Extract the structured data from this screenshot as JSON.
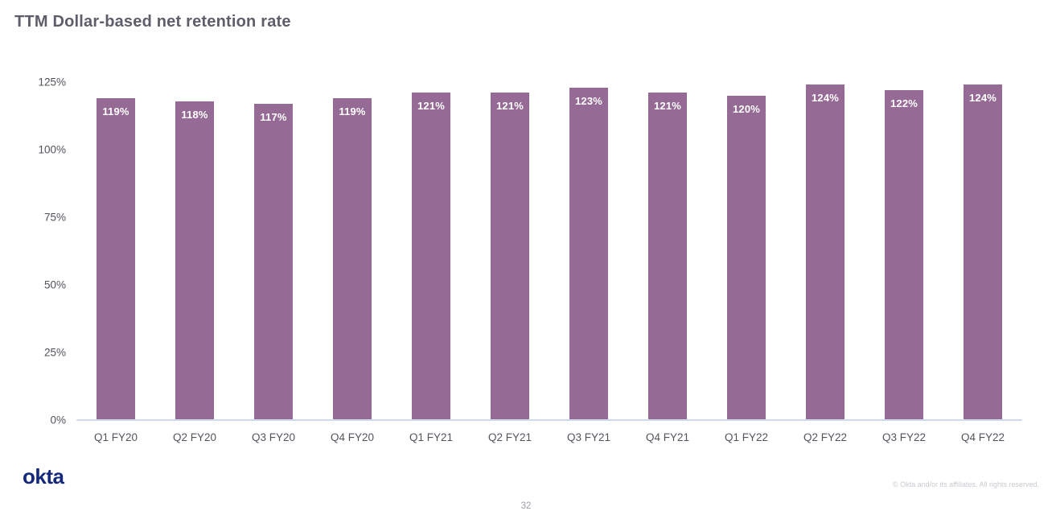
{
  "page": {
    "title": "TTM Dollar-based net retention rate",
    "footer": {
      "logo_text": "okta",
      "copyright": "© Okta and/or its affiliates. All rights reserved.",
      "page_number": "32"
    }
  },
  "chart_data": {
    "type": "bar",
    "title": "TTM Dollar-based net retention rate",
    "categories": [
      "Q1 FY20",
      "Q2 FY20",
      "Q3 FY20",
      "Q4 FY20",
      "Q1 FY21",
      "Q2 FY21",
      "Q3 FY21",
      "Q4 FY21",
      "Q1 FY22",
      "Q2 FY22",
      "Q3 FY22",
      "Q4 FY22"
    ],
    "values": [
      119,
      118,
      117,
      119,
      121,
      121,
      123,
      121,
      120,
      124,
      122,
      124
    ],
    "value_labels": [
      "119%",
      "118%",
      "117%",
      "119%",
      "121%",
      "121%",
      "123%",
      "121%",
      "120%",
      "124%",
      "122%",
      "124%"
    ],
    "xlabel": "",
    "ylabel": "",
    "ylim": [
      0,
      125
    ],
    "y_tick_values": [
      125,
      100,
      75,
      50,
      25,
      0
    ],
    "y_tick_labels": [
      "125%",
      "100%",
      "75%",
      "50%",
      "25%",
      "0%"
    ],
    "grid": false,
    "legend": "none",
    "bar_color": "#956A94",
    "bar_label_color": "#FFFFFF",
    "axis_line_color": "#CDDAF0",
    "tick_label_color": "#50535B"
  }
}
